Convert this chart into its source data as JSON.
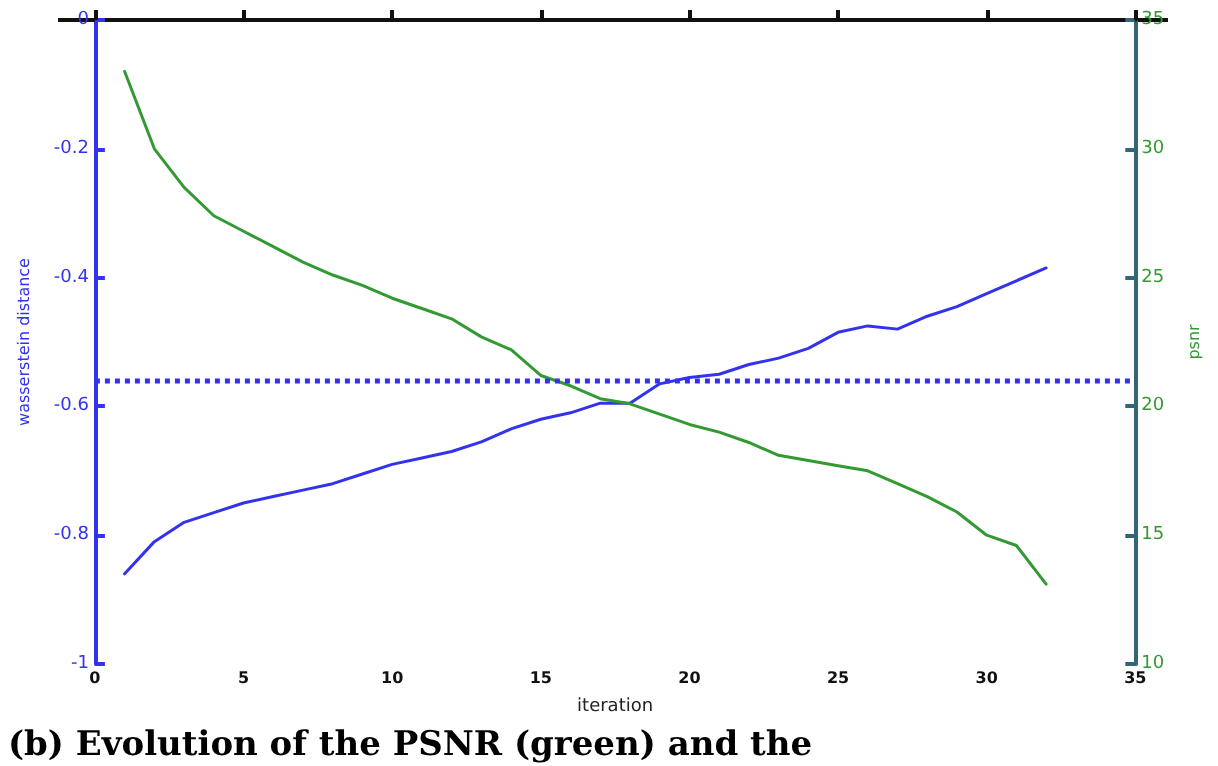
{
  "chart_data": {
    "type": "line",
    "xlabel": "iteration",
    "ylabel": "wasserstein distance",
    "y2label": "psnr",
    "x": [
      1,
      2,
      3,
      4,
      5,
      6,
      7,
      8,
      9,
      10,
      11,
      12,
      13,
      14,
      15,
      16,
      17,
      18,
      19,
      20,
      21,
      22,
      23,
      24,
      25,
      26,
      27,
      28,
      29,
      30,
      31,
      32
    ],
    "series": [
      {
        "color": "#3333ee",
        "values": [
          -0.86,
          -0.81,
          -0.78,
          -0.765,
          -0.75,
          -0.74,
          -0.73,
          -0.72,
          -0.705,
          -0.69,
          -0.68,
          -0.67,
          -0.655,
          -0.635,
          -0.62,
          -0.61,
          -0.595,
          -0.595,
          -0.565,
          -0.555,
          -0.55,
          -0.535,
          -0.525,
          -0.51,
          -0.485,
          -0.475,
          -0.48,
          -0.46,
          -0.445,
          -0.425,
          -0.405,
          -0.385
        ]
      },
      {
        "color": "#339933",
        "axis": "y2",
        "values": [
          33.0,
          30.0,
          28.5,
          27.4,
          26.8,
          26.2,
          25.6,
          25.1,
          24.7,
          24.2,
          23.8,
          23.4,
          22.7,
          22.2,
          21.2,
          20.8,
          20.3,
          20.1,
          19.7,
          19.3,
          19.0,
          18.6,
          18.1,
          17.9,
          17.7,
          17.5,
          17.0,
          16.5,
          15.9,
          15.0,
          14.6,
          13.1
        ]
      }
    ],
    "xlim": [
      0,
      35
    ],
    "xticks": [
      0,
      5,
      10,
      15,
      20,
      25,
      30,
      35
    ],
    "ylim": [
      -1,
      0
    ],
    "yticks": [
      -1,
      -0.8,
      -0.6,
      -0.4,
      -0.2,
      0
    ],
    "y2lim": [
      10,
      35
    ],
    "y2ticks": [
      10,
      15,
      20,
      25,
      30,
      35
    ],
    "ref_lines": [
      {
        "axis": "y",
        "value": -0.56,
        "color": "#3333ee",
        "line_style": "dotted"
      }
    ],
    "annotations": [
      "(b) Evolution of the PSNR (green) and the"
    ],
    "grid": false,
    "marker": "none",
    "line_style": "solid"
  }
}
